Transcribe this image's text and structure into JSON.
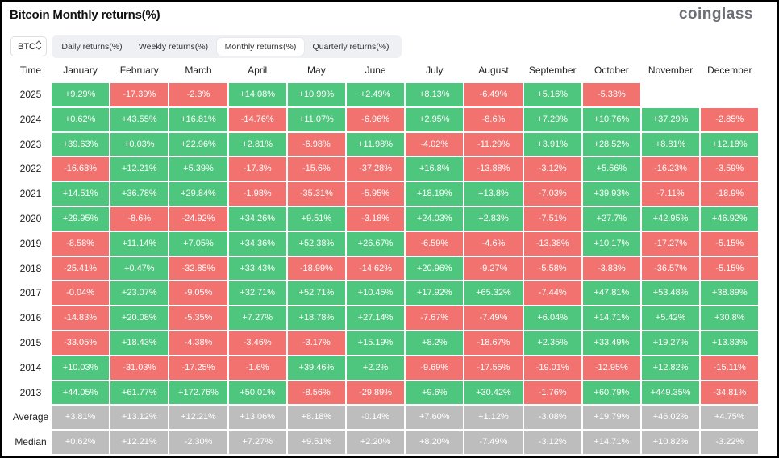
{
  "header": {
    "title": "Bitcoin Monthly returns(%)",
    "logo": "coinglass"
  },
  "controls": {
    "asset": "BTC",
    "tabs": [
      "Daily returns(%)",
      "Weekly returns(%)",
      "Monthly returns(%)",
      "Quarterly returns(%)"
    ]
  },
  "table": {
    "columns": [
      "Time",
      "January",
      "February",
      "March",
      "April",
      "May",
      "June",
      "July",
      "August",
      "September",
      "October",
      "November",
      "December"
    ],
    "rows": [
      {
        "label": "2025",
        "cells": [
          "+9.29%",
          "-17.39%",
          "-2.3%",
          "+14.08%",
          "+10.99%",
          "+2.49%",
          "+8.13%",
          "-6.49%",
          "+5.16%",
          "-5.33%",
          null,
          null
        ]
      },
      {
        "label": "2024",
        "cells": [
          "+0.62%",
          "+43.55%",
          "+16.81%",
          "-14.76%",
          "+11.07%",
          "-6.96%",
          "+2.95%",
          "-8.6%",
          "+7.29%",
          "+10.76%",
          "+37.29%",
          "-2.85%"
        ]
      },
      {
        "label": "2023",
        "cells": [
          "+39.63%",
          "+0.03%",
          "+22.96%",
          "+2.81%",
          "-6.98%",
          "+11.98%",
          "-4.02%",
          "-11.29%",
          "+3.91%",
          "+28.52%",
          "+8.81%",
          "+12.18%"
        ]
      },
      {
        "label": "2022",
        "cells": [
          "-16.68%",
          "+12.21%",
          "+5.39%",
          "-17.3%",
          "-15.6%",
          "-37.28%",
          "+16.8%",
          "-13.88%",
          "-3.12%",
          "+5.56%",
          "-16.23%",
          "-3.59%"
        ]
      },
      {
        "label": "2021",
        "cells": [
          "+14.51%",
          "+36.78%",
          "+29.84%",
          "-1.98%",
          "-35.31%",
          "-5.95%",
          "+18.19%",
          "+13.8%",
          "-7.03%",
          "+39.93%",
          "-7.11%",
          "-18.9%"
        ]
      },
      {
        "label": "2020",
        "cells": [
          "+29.95%",
          "-8.6%",
          "-24.92%",
          "+34.26%",
          "+9.51%",
          "-3.18%",
          "+24.03%",
          "+2.83%",
          "-7.51%",
          "+27.7%",
          "+42.95%",
          "+46.92%"
        ]
      },
      {
        "label": "2019",
        "cells": [
          "-8.58%",
          "+11.14%",
          "+7.05%",
          "+34.36%",
          "+52.38%",
          "+26.67%",
          "-6.59%",
          "-4.6%",
          "-13.38%",
          "+10.17%",
          "-17.27%",
          "-5.15%"
        ]
      },
      {
        "label": "2018",
        "cells": [
          "-25.41%",
          "+0.47%",
          "-32.85%",
          "+33.43%",
          "-18.99%",
          "-14.62%",
          "+20.96%",
          "-9.27%",
          "-5.58%",
          "-3.83%",
          "-36.57%",
          "-5.15%"
        ]
      },
      {
        "label": "2017",
        "cells": [
          "-0.04%",
          "+23.07%",
          "-9.05%",
          "+32.71%",
          "+52.71%",
          "+10.45%",
          "+17.92%",
          "+65.32%",
          "-7.44%",
          "+47.81%",
          "+53.48%",
          "+38.89%"
        ]
      },
      {
        "label": "2016",
        "cells": [
          "-14.83%",
          "+20.08%",
          "-5.35%",
          "+7.27%",
          "+18.78%",
          "+27.14%",
          "-7.67%",
          "-7.49%",
          "+6.04%",
          "+14.71%",
          "+5.42%",
          "+30.8%"
        ]
      },
      {
        "label": "2015",
        "cells": [
          "-33.05%",
          "+18.43%",
          "-4.38%",
          "-3.46%",
          "-3.17%",
          "+15.19%",
          "+8.2%",
          "-18.67%",
          "+2.35%",
          "+33.49%",
          "+19.27%",
          "+13.83%"
        ]
      },
      {
        "label": "2014",
        "cells": [
          "+10.03%",
          "-31.03%",
          "-17.25%",
          "-1.6%",
          "+39.46%",
          "+2.2%",
          "-9.69%",
          "-17.55%",
          "-19.01%",
          "-12.95%",
          "+12.82%",
          "-15.11%"
        ]
      },
      {
        "label": "2013",
        "cells": [
          "+44.05%",
          "+61.77%",
          "+172.76%",
          "+50.01%",
          "-8.56%",
          "-29.89%",
          "+9.6%",
          "+30.42%",
          "-1.76%",
          "+60.79%",
          "+449.35%",
          "-34.81%"
        ]
      }
    ],
    "summary_rows": [
      {
        "label": "Average",
        "cells": [
          "+3.81%",
          "+13.12%",
          "+12.21%",
          "+13.06%",
          "+8.18%",
          "-0.14%",
          "+7.60%",
          "+1.12%",
          "-3.08%",
          "+19.79%",
          "+46.02%",
          "+4.75%"
        ]
      },
      {
        "label": "Median",
        "cells": [
          "+0.62%",
          "+12.21%",
          "-2.30%",
          "+7.27%",
          "+9.51%",
          "+2.20%",
          "+8.20%",
          "-7.49%",
          "-3.12%",
          "+14.71%",
          "+10.82%",
          "-3.22%"
        ]
      }
    ]
  }
}
